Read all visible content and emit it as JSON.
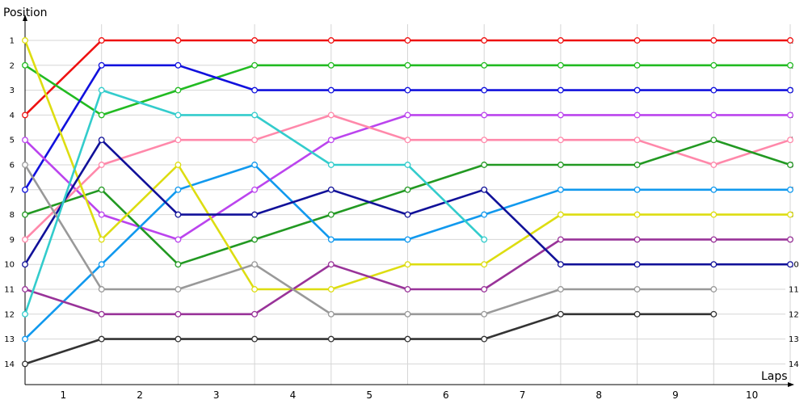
{
  "chart_data": {
    "type": "line",
    "ylabel": "Position",
    "xlabel": "Laps",
    "xlim": [
      0,
      10.5
    ],
    "ylim": [
      1,
      14
    ],
    "y_reversed": true,
    "grid": true,
    "x_ticks": [
      "1",
      "2",
      "3",
      "4",
      "5",
      "6",
      "7",
      "8",
      "9",
      "10"
    ],
    "y_ticks": [
      "1",
      "2",
      "3",
      "4",
      "5",
      "6",
      "7",
      "8",
      "9",
      "10",
      "11",
      "12",
      "13",
      "14"
    ],
    "series": [
      {
        "color": "#ee1111",
        "x": [
          0,
          1,
          2,
          3,
          4,
          5,
          6,
          7,
          8,
          9,
          10
        ],
        "values": [
          4,
          1,
          1,
          1,
          1,
          1,
          1,
          1,
          1,
          1,
          1
        ]
      },
      {
        "color": "#22bb22",
        "x": [
          0,
          1,
          2,
          3,
          4,
          5,
          6,
          7,
          8,
          9,
          10
        ],
        "values": [
          2,
          4,
          3,
          2,
          2,
          2,
          2,
          2,
          2,
          2,
          2
        ]
      },
      {
        "color": "#1111dd",
        "x": [
          0,
          1,
          2,
          3,
          4,
          5,
          6,
          7,
          8,
          9,
          10
        ],
        "values": [
          7,
          2,
          2,
          3,
          3,
          3,
          3,
          3,
          3,
          3,
          3
        ]
      },
      {
        "color": "#bb44ee",
        "x": [
          0,
          1,
          2,
          3,
          4,
          5,
          6,
          7,
          8,
          9,
          10
        ],
        "values": [
          5,
          8,
          9,
          7,
          5,
          4,
          4,
          4,
          4,
          4,
          4
        ]
      },
      {
        "color": "#ff88aa",
        "x": [
          0,
          1,
          2,
          3,
          4,
          5,
          6,
          7,
          8,
          9,
          10
        ],
        "values": [
          9,
          6,
          5,
          5,
          4,
          5,
          5,
          5,
          5,
          6,
          5
        ]
      },
      {
        "color": "#229922",
        "x": [
          0,
          1,
          2,
          3,
          4,
          5,
          6,
          7,
          8,
          9,
          10
        ],
        "values": [
          8,
          7,
          10,
          9,
          8,
          7,
          6,
          6,
          6,
          5,
          6
        ]
      },
      {
        "color": "#1199ee",
        "x": [
          0,
          1,
          2,
          3,
          4,
          5,
          6,
          7,
          8,
          9,
          10
        ],
        "values": [
          13,
          10,
          7,
          6,
          9,
          9,
          8,
          7,
          7,
          7,
          7
        ]
      },
      {
        "color": "#dddd11",
        "x": [
          0,
          1,
          2,
          3,
          4,
          5,
          6,
          7,
          8,
          9,
          10
        ],
        "values": [
          1,
          9,
          6,
          11,
          11,
          10,
          10,
          8,
          8,
          8,
          8
        ]
      },
      {
        "color": "#993399",
        "x": [
          0,
          1,
          2,
          3,
          4,
          5,
          6,
          7,
          8,
          9,
          10
        ],
        "values": [
          11,
          12,
          12,
          12,
          10,
          11,
          11,
          9,
          9,
          9,
          9
        ]
      },
      {
        "color": "#111199",
        "x": [
          0,
          1,
          2,
          3,
          4,
          5,
          6,
          7,
          8,
          9,
          10
        ],
        "values": [
          10,
          5,
          8,
          8,
          7,
          8,
          7,
          10,
          10,
          10,
          10
        ]
      },
      {
        "color": "#999999",
        "x": [
          0,
          1,
          2,
          3,
          4,
          5,
          6,
          7,
          8,
          9
        ],
        "values": [
          6,
          11,
          11,
          10,
          12,
          12,
          12,
          11,
          11,
          11
        ]
      },
      {
        "color": "#333333",
        "x": [
          0,
          1,
          2,
          3,
          4,
          5,
          6,
          7,
          8,
          9
        ],
        "values": [
          14,
          13,
          13,
          13,
          13,
          13,
          13,
          12,
          12,
          12
        ]
      },
      {
        "color": "#33cccc",
        "x": [
          0,
          1,
          2,
          3,
          4,
          5,
          6
        ],
        "values": [
          12,
          3,
          4,
          4,
          6,
          6,
          9
        ]
      }
    ]
  }
}
